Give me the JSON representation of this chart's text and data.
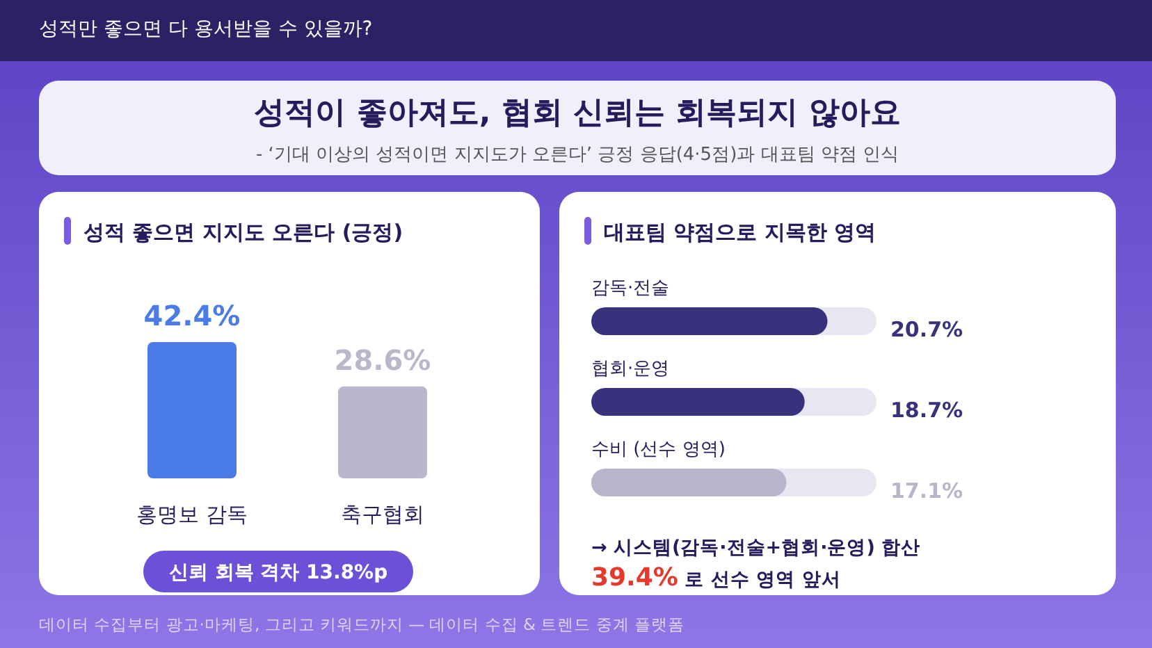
{
  "chart_data": [
    {
      "type": "other",
      "title": "성적이 좋아져도, 협회 신뢰는 회복되지 않아요",
      "subtitle": "- ‘기대 이상의 성적이면 지지도가 오른다’ 긍정 응답(4·5점)과 대표팀 약점 인식",
      "annotations": [
        "성적만 좋으면 다 용서받을 수 있을까?",
        "데이터 수집부터 광고·마케팅, 그리고 키워드까지 — 데이터 수집 & 트렌드 중계 플랫폼"
      ]
    },
    {
      "type": "bar",
      "title": "성적 좋으면 지지도 오른다 (긍정)",
      "categories": [
        "홍명보 감독",
        "축구협회"
      ],
      "values": [
        42.4,
        28.6
      ],
      "colors": [
        "#4a7be6",
        "#b9b7cb"
      ],
      "value_labels": [
        "42.4%",
        "28.6%"
      ],
      "tick_labels": "x",
      "annotations": [
        "신뢰 회복 격차 13.8%p"
      ]
    },
    {
      "type": "bar",
      "orientation": "horizontal",
      "title": "대표팀 약점으로 지목한 영역",
      "categories": [
        "감독·전술",
        "협회·운영",
        "수비 (선수 영역)"
      ],
      "values": [
        20.7,
        18.7,
        17.1
      ],
      "colors": [
        "#38327c",
        "#38327c",
        "#b7b5ca"
      ],
      "value_labels": [
        "20.7%",
        "18.7%",
        "17.1%"
      ],
      "xlim": [
        0,
        25
      ],
      "tick_labels": "y",
      "annotations": [
        "→ 시스템(감독·전술+협회·운영) 합산",
        "**39.4%** 로 선수 영역 앞서"
      ]
    }
  ]
}
